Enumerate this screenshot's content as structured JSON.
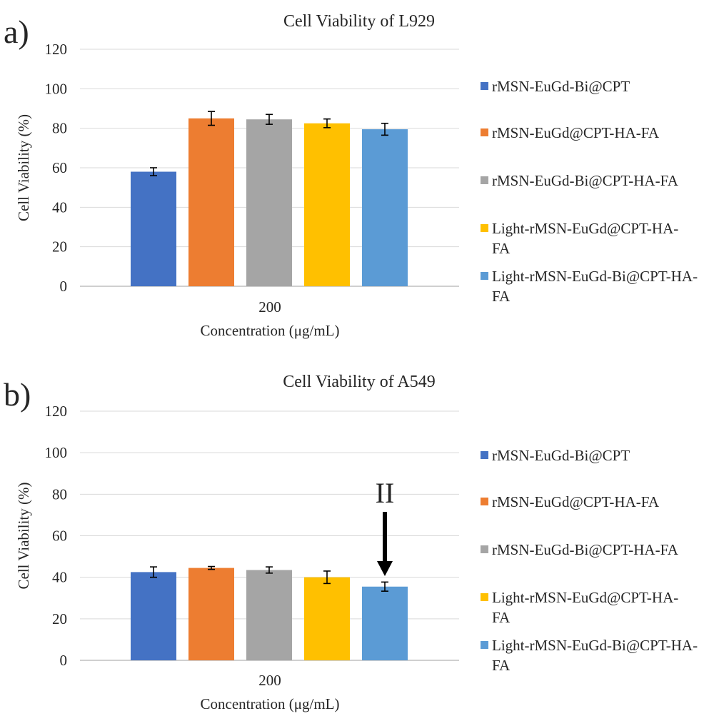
{
  "panels": [
    {
      "letter": "a)",
      "annotation": ""
    },
    {
      "letter": "b)",
      "annotation": "II"
    }
  ],
  "chart_data": [
    {
      "type": "bar",
      "title": "Cell Viability  of L929",
      "xlabel": "Concentration (μg/mL)",
      "ylabel": "Cell Viability  (%)",
      "categories": [
        "200"
      ],
      "ylim": [
        0,
        120
      ],
      "yticks": [
        0,
        20,
        40,
        60,
        80,
        100,
        120
      ],
      "grid": true,
      "legend_position": "right",
      "series": [
        {
          "name": "rMSN-EuGd-Bi@CPT",
          "values": [
            58
          ],
          "error": [
            2
          ],
          "color": "#4472C4"
        },
        {
          "name": "rMSN-EuGd@CPT-HA-FA",
          "values": [
            85
          ],
          "error": [
            3.5
          ],
          "color": "#ED7D31"
        },
        {
          "name": "rMSN-EuGd-Bi@CPT-HA-FA",
          "values": [
            84.5
          ],
          "error": [
            2.5
          ],
          "color": "#A5A5A5"
        },
        {
          "name": "Light-rMSN-EuGd@CPT-HA-FA",
          "values": [
            82.5
          ],
          "error": [
            2.2
          ],
          "color": "#FFC000"
        },
        {
          "name": "Light-rMSN-EuGd-Bi@CPT-HA-FA",
          "values": [
            79.5
          ],
          "error": [
            3
          ],
          "color": "#5B9BD5"
        }
      ]
    },
    {
      "type": "bar",
      "title": "Cell Viability  of A549",
      "xlabel": "Concentration (μg/mL)",
      "ylabel": "Cell Viability  (%)",
      "categories": [
        "200"
      ],
      "ylim": [
        0,
        120
      ],
      "yticks": [
        0,
        20,
        40,
        60,
        80,
        100,
        120
      ],
      "grid": true,
      "legend_position": "right",
      "series": [
        {
          "name": "rMSN-EuGd-Bi@CPT",
          "values": [
            42.5
          ],
          "error": [
            2.5
          ],
          "color": "#4472C4"
        },
        {
          "name": "rMSN-EuGd@CPT-HA-FA",
          "values": [
            44.5
          ],
          "error": [
            0.7
          ],
          "color": "#ED7D31"
        },
        {
          "name": "rMSN-EuGd-Bi@CPT-HA-FA",
          "values": [
            43.5
          ],
          "error": [
            1.5
          ],
          "color": "#A5A5A5"
        },
        {
          "name": "Light-rMSN-EuGd@CPT-HA-FA",
          "values": [
            40
          ],
          "error": [
            3
          ],
          "color": "#FFC000"
        },
        {
          "name": "Light-rMSN-EuGd-Bi@CPT-HA-FA",
          "values": [
            35.5
          ],
          "error": [
            2.2
          ],
          "color": "#5B9BD5"
        }
      ]
    }
  ]
}
